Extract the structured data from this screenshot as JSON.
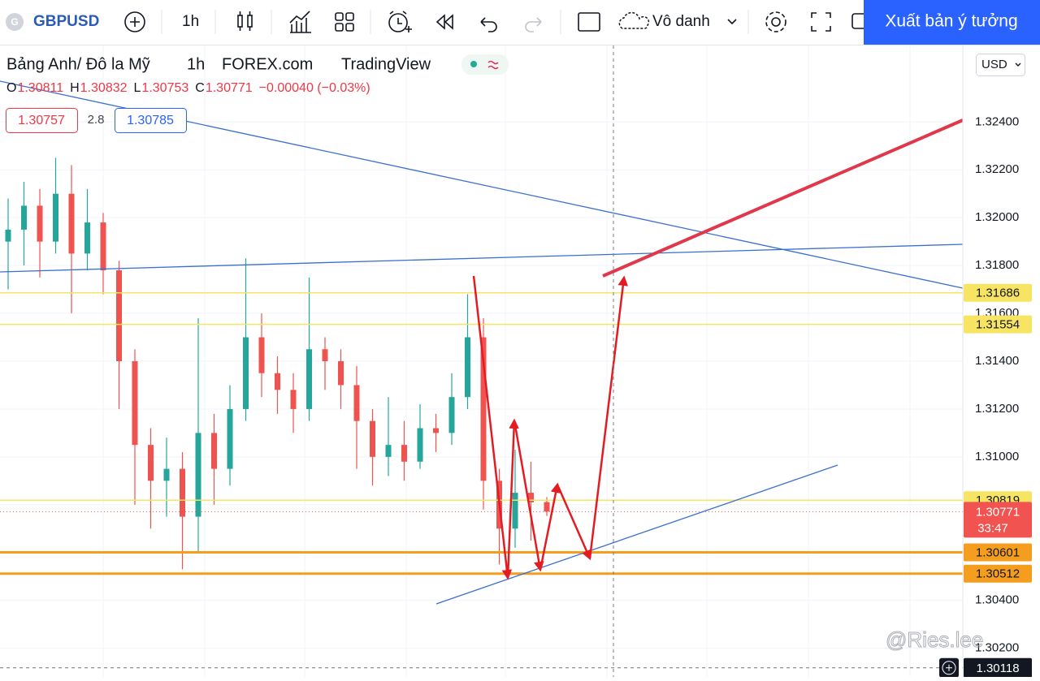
{
  "toolbar": {
    "logo": "G",
    "symbol": "GBPUSD",
    "interval": "1h",
    "layout_name": "Vô danh",
    "publish": "Xuất bản ý tưởng"
  },
  "legend": {
    "name": "Bảng Anh/ Đô la Mỹ",
    "interval": "1h",
    "exchange": "FOREX.com",
    "source": "TradingView",
    "ohlc": [
      {
        "key": "O",
        "text": "1.30811"
      },
      {
        "key": "H",
        "text": "1.30832"
      },
      {
        "key": "L",
        "text": "1.30753"
      },
      {
        "key": "C",
        "text": "1.30771"
      }
    ],
    "change": "−0.00040 (−0.03%)",
    "bid": "1.30757",
    "spread": "2.8",
    "ask": "1.30785"
  },
  "currency": "USD",
  "watermark": "@Ries.lee",
  "chart_data": {
    "type": "candlestick",
    "up_color": "#26a69a",
    "down_color": "#ef5350",
    "ylim": [
      1.3008,
      1.3272
    ],
    "yticks": [
      {
        "value": 1.324,
        "label": "1.32400"
      },
      {
        "value": 1.322,
        "label": "1.32200"
      },
      {
        "value": 1.32,
        "label": "1.32000"
      },
      {
        "value": 1.318,
        "label": "1.31800"
      },
      {
        "value": 1.316,
        "label": "1.31600"
      },
      {
        "value": 1.314,
        "label": "1.31400"
      },
      {
        "value": 1.312,
        "label": "1.31200"
      },
      {
        "value": 1.31,
        "label": "1.31000"
      },
      {
        "value": 1.308,
        "label": "1.30800"
      },
      {
        "value": 1.306,
        "label": "1.30600"
      },
      {
        "value": 1.304,
        "label": "1.30400"
      },
      {
        "value": 1.302,
        "label": "1.30200"
      }
    ],
    "ohlc": [
      [
        1.319,
        1.3208,
        1.317,
        1.3195
      ],
      [
        1.3195,
        1.3215,
        1.318,
        1.3205
      ],
      [
        1.3205,
        1.3212,
        1.3175,
        1.319
      ],
      [
        1.319,
        1.3225,
        1.3185,
        1.321
      ],
      [
        1.321,
        1.3222,
        1.316,
        1.3185
      ],
      [
        1.3185,
        1.3212,
        1.3178,
        1.3198
      ],
      [
        1.3198,
        1.3202,
        1.3168,
        1.3178
      ],
      [
        1.3178,
        1.3182,
        1.312,
        1.314
      ],
      [
        1.314,
        1.3145,
        1.308,
        1.3105
      ],
      [
        1.3105,
        1.3112,
        1.307,
        1.309
      ],
      [
        1.309,
        1.3108,
        1.3075,
        1.3095
      ],
      [
        1.3095,
        1.3102,
        1.3053,
        1.3075
      ],
      [
        1.3075,
        1.3158,
        1.306,
        1.311
      ],
      [
        1.311,
        1.3118,
        1.308,
        1.3095
      ],
      [
        1.3095,
        1.313,
        1.3088,
        1.312
      ],
      [
        1.312,
        1.3183,
        1.3115,
        1.315
      ],
      [
        1.315,
        1.316,
        1.3125,
        1.3135
      ],
      [
        1.3135,
        1.3142,
        1.3118,
        1.3128
      ],
      [
        1.3128,
        1.3135,
        1.311,
        1.312
      ],
      [
        1.312,
        1.3175,
        1.3115,
        1.3145
      ],
      [
        1.3145,
        1.315,
        1.3128,
        1.314
      ],
      [
        1.314,
        1.3145,
        1.312,
        1.313
      ],
      [
        1.313,
        1.3138,
        1.3095,
        1.3115
      ],
      [
        1.3115,
        1.312,
        1.3088,
        1.31
      ],
      [
        1.31,
        1.3125,
        1.3092,
        1.3105
      ],
      [
        1.3105,
        1.3115,
        1.309,
        1.3098
      ],
      [
        1.3098,
        1.3122,
        1.3095,
        1.3112
      ],
      [
        1.3112,
        1.3118,
        1.3102,
        1.311
      ],
      [
        1.311,
        1.3135,
        1.3105,
        1.3125
      ],
      [
        1.3125,
        1.3168,
        1.312,
        1.315
      ],
      [
        1.315,
        1.3158,
        1.3078,
        1.309
      ],
      [
        1.309,
        1.3095,
        1.3055,
        1.307
      ],
      [
        1.307,
        1.3103,
        1.3062,
        1.3085
      ],
      [
        1.3085,
        1.3098,
        1.3065,
        1.3081
      ],
      [
        1.30811,
        1.30832,
        1.30753,
        1.30771
      ]
    ],
    "hlines": [
      {
        "value": 1.31686,
        "label": "1.31686",
        "color": "#f7e463"
      },
      {
        "value": 1.31554,
        "label": "1.31554",
        "color": "#f7e463"
      },
      {
        "value": 1.30819,
        "label": "1.30819",
        "color": "#f7e463"
      },
      {
        "value": 1.30601,
        "label": "1.30601",
        "color": "#f59d1e"
      },
      {
        "value": 1.30512,
        "label": "1.30512",
        "color": "#f59d1e"
      }
    ],
    "last_price": {
      "value": 1.30771,
      "label": "1.30771",
      "countdown": "33:47",
      "color": "#f05350"
    },
    "crosshair": {
      "value": 1.30118,
      "label": "1.30118"
    }
  }
}
